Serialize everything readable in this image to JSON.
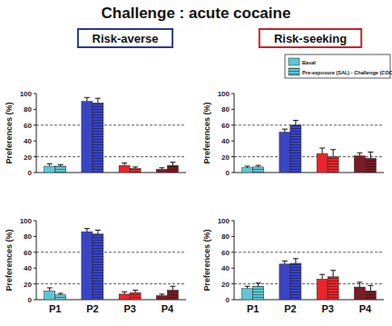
{
  "page": {
    "title": "Challenge : acute cocaine",
    "columns": [
      "Risk-averse",
      "Risk-seeking"
    ]
  },
  "chart_data": [
    {
      "type": "bar",
      "y_label": "Preferences (%)",
      "categories": [
        "P1",
        "P2",
        "P3",
        "P4"
      ],
      "ylim": [
        0,
        100
      ],
      "yticks": [
        0,
        20,
        40,
        60,
        80,
        100
      ],
      "reference_lines": [
        20,
        60
      ],
      "tick_labels": "y",
      "series": [
        {
          "name": "Basal",
          "colors": [
            "#5cc8d6",
            "#3a45c4",
            "#e8262b",
            "#7a1d24"
          ],
          "values": [
            8,
            90,
            9,
            4
          ],
          "errors": [
            3,
            5,
            3,
            2
          ]
        },
        {
          "name": "Pre-exposure (SAL) - Challenge (COC)",
          "colors": [
            "#5cc8d6",
            "#3a45c4",
            "#e8262b",
            "#7a1d24"
          ],
          "marker": "striped",
          "values": [
            8,
            88,
            5,
            9
          ],
          "errors": [
            2,
            6,
            2,
            4
          ]
        }
      ]
    },
    {
      "type": "bar",
      "y_label": "Preferences (%)",
      "categories": [
        "P1",
        "P2",
        "P3",
        "P4"
      ],
      "ylim": [
        0,
        100
      ],
      "yticks": [
        0,
        20,
        40,
        60,
        80,
        100
      ],
      "reference_lines": [
        20,
        60
      ],
      "tick_labels": "y",
      "legend": "top-right",
      "series": [
        {
          "name": "Basal",
          "colors": [
            "#5cc8d6",
            "#3a45c4",
            "#e8262b",
            "#7a1d24"
          ],
          "values": [
            6,
            51,
            24,
            21
          ],
          "errors": [
            2,
            4,
            7,
            4
          ]
        },
        {
          "name": "Pre-exposure (SAL) - Challenge (COC)",
          "colors": [
            "#5cc8d6",
            "#3a45c4",
            "#e8262b",
            "#7a1d24"
          ],
          "marker": "striped",
          "values": [
            7,
            60,
            20,
            18
          ],
          "errors": [
            2,
            6,
            9,
            8
          ]
        }
      ]
    },
    {
      "type": "bar",
      "y_label": "Preferences (%)",
      "categories": [
        "P1",
        "P2",
        "P3",
        "P4"
      ],
      "ylim": [
        0,
        100
      ],
      "yticks": [
        0,
        20,
        40,
        60,
        80,
        100
      ],
      "reference_lines": [
        20,
        60
      ],
      "series": [
        {
          "name": "Basal",
          "colors": [
            "#5cc8d6",
            "#3a45c4",
            "#e8262b",
            "#7a1d24"
          ],
          "values": [
            11,
            86,
            7,
            5
          ],
          "errors": [
            4,
            4,
            3,
            2
          ]
        },
        {
          "name": "Pre-exposure (SAL) - Challenge (COC)",
          "colors": [
            "#5cc8d6",
            "#3a45c4",
            "#e8262b",
            "#7a1d24"
          ],
          "marker": "striped",
          "values": [
            6,
            83,
            9,
            12
          ],
          "errors": [
            2,
            5,
            3,
            5
          ]
        }
      ]
    },
    {
      "type": "bar",
      "y_label": "Preferences (%)",
      "categories": [
        "P1",
        "P2",
        "P3",
        "P4"
      ],
      "ylim": [
        0,
        100
      ],
      "yticks": [
        0,
        20,
        40,
        60,
        80,
        100
      ],
      "reference_lines": [
        20,
        60
      ],
      "series": [
        {
          "name": "Basal",
          "colors": [
            "#5cc8d6",
            "#3a45c4",
            "#e8262b",
            "#7a1d24"
          ],
          "values": [
            14,
            45,
            26,
            16
          ],
          "errors": [
            3,
            4,
            6,
            6
          ]
        },
        {
          "name": "Pre-exposure (SAL) - Challenge (COC)",
          "colors": [
            "#5cc8d6",
            "#3a45c4",
            "#e8262b",
            "#7a1d24"
          ],
          "marker": "striped",
          "values": [
            17,
            46,
            29,
            11
          ],
          "errors": [
            4,
            6,
            8,
            7
          ]
        }
      ]
    }
  ]
}
